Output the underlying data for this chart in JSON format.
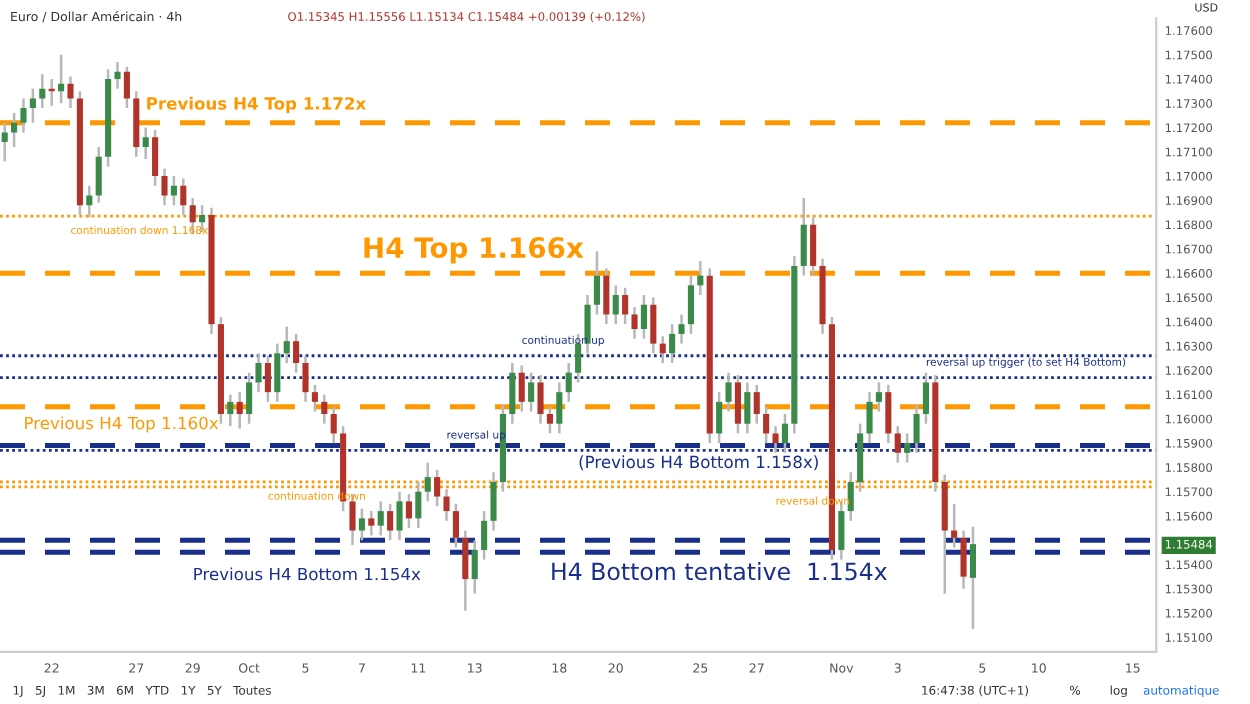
{
  "chart_data": {
    "type": "candlestick",
    "title": "Euro / Dollar Américain · 4h",
    "subtitle": "O1.15345 H1.15556 L1.15134 C1.15484 +0.00139 (+0.12%)",
    "categories": [
      null,
      null,
      null,
      null,
      null,
      "22",
      null,
      null,
      null,
      null,
      null,
      null,
      null,
      null,
      "27",
      null,
      null,
      null,
      null,
      null,
      "29",
      null,
      null,
      null,
      null,
      null,
      "Oct",
      null,
      null,
      null,
      null,
      null,
      "5",
      null,
      null,
      null,
      null,
      null,
      "7",
      null,
      null,
      null,
      null,
      null,
      "11",
      null,
      null,
      null,
      null,
      null,
      "13",
      null,
      null,
      null,
      null,
      null,
      null,
      null,
      null,
      "18",
      null,
      null,
      null,
      null,
      null,
      "20",
      null,
      null,
      null,
      null,
      null,
      null,
      null,
      null,
      "25",
      null,
      null,
      null,
      null,
      null,
      "27",
      null,
      null,
      null,
      null,
      null,
      null,
      null,
      null,
      "Nov",
      null,
      null,
      null,
      null,
      null,
      "3",
      null,
      null,
      null,
      null,
      null,
      null,
      null,
      null,
      "5",
      null,
      null,
      null,
      null,
      null,
      "10",
      null,
      null,
      null,
      null,
      null,
      null,
      null,
      null,
      null,
      "15",
      null,
      null
    ],
    "ohlc": [
      [
        1.1714,
        1.1722,
        1.1706,
        1.1718
      ],
      [
        1.1718,
        1.1726,
        1.1712,
        1.1722
      ],
      [
        1.1722,
        1.1732,
        1.1718,
        1.1728
      ],
      [
        1.1728,
        1.1736,
        1.1722,
        1.1732
      ],
      [
        1.1732,
        1.1742,
        1.1728,
        1.1736
      ],
      [
        1.1736,
        1.174,
        1.1729,
        1.1735
      ],
      [
        1.1735,
        1.175,
        1.173,
        1.1738
      ],
      [
        1.1738,
        1.1741,
        1.1728,
        1.1732
      ],
      [
        1.1732,
        1.1735,
        1.1684,
        1.1688
      ],
      [
        1.1688,
        1.1696,
        1.1683,
        1.1692
      ],
      [
        1.1692,
        1.1712,
        1.1689,
        1.1708
      ],
      [
        1.1708,
        1.1744,
        1.1704,
        1.174
      ],
      [
        1.174,
        1.1747,
        1.1736,
        1.1743
      ],
      [
        1.1743,
        1.1745,
        1.1728,
        1.1732
      ],
      [
        1.1732,
        1.1735,
        1.1708,
        1.1712
      ],
      [
        1.1712,
        1.172,
        1.1707,
        1.1716
      ],
      [
        1.1716,
        1.1719,
        1.1696,
        1.17
      ],
      [
        1.17,
        1.1703,
        1.1688,
        1.1692
      ],
      [
        1.1692,
        1.17,
        1.1688,
        1.1696
      ],
      [
        1.1696,
        1.1699,
        1.1684,
        1.1688
      ],
      [
        1.1688,
        1.1691,
        1.1676,
        1.1681
      ],
      [
        1.1681,
        1.1688,
        1.1677,
        1.1684
      ],
      [
        1.1684,
        1.1687,
        1.1635,
        1.1639
      ],
      [
        1.1639,
        1.1642,
        1.1598,
        1.1602
      ],
      [
        1.1602,
        1.161,
        1.1597,
        1.1607
      ],
      [
        1.1607,
        1.1611,
        1.1596,
        1.1602
      ],
      [
        1.1602,
        1.1619,
        1.1598,
        1.1615
      ],
      [
        1.1615,
        1.1627,
        1.1611,
        1.1623
      ],
      [
        1.1623,
        1.1626,
        1.1607,
        1.1611
      ],
      [
        1.1611,
        1.1631,
        1.1607,
        1.1627
      ],
      [
        1.1627,
        1.1638,
        1.1623,
        1.1632
      ],
      [
        1.1632,
        1.1635,
        1.1619,
        1.1623
      ],
      [
        1.1623,
        1.1626,
        1.1607,
        1.1611
      ],
      [
        1.1611,
        1.1614,
        1.1603,
        1.1607
      ],
      [
        1.1607,
        1.161,
        1.1598,
        1.1602
      ],
      [
        1.1602,
        1.1605,
        1.159,
        1.1594
      ],
      [
        1.1594,
        1.1597,
        1.1562,
        1.1566
      ],
      [
        1.1566,
        1.1569,
        1.1548,
        1.1554
      ],
      [
        1.1554,
        1.1563,
        1.155,
        1.1559
      ],
      [
        1.1559,
        1.1562,
        1.1552,
        1.1556
      ],
      [
        1.1556,
        1.1566,
        1.1552,
        1.1562
      ],
      [
        1.1562,
        1.1565,
        1.155,
        1.1554
      ],
      [
        1.1554,
        1.157,
        1.155,
        1.1566
      ],
      [
        1.1566,
        1.1569,
        1.1555,
        1.1559
      ],
      [
        1.1559,
        1.1574,
        1.1555,
        1.157
      ],
      [
        1.157,
        1.1582,
        1.1566,
        1.1576
      ],
      [
        1.1576,
        1.1579,
        1.1564,
        1.1568
      ],
      [
        1.1568,
        1.1571,
        1.1558,
        1.1562
      ],
      [
        1.1562,
        1.1565,
        1.1547,
        1.1551
      ],
      [
        1.1551,
        1.1554,
        1.1521,
        1.1534
      ],
      [
        1.1534,
        1.155,
        1.1528,
        1.1546
      ],
      [
        1.1546,
        1.1562,
        1.1542,
        1.1558
      ],
      [
        1.1558,
        1.1578,
        1.1554,
        1.1574
      ],
      [
        1.1574,
        1.1606,
        1.157,
        1.1602
      ],
      [
        1.1602,
        1.1623,
        1.1598,
        1.1619
      ],
      [
        1.1619,
        1.1622,
        1.1603,
        1.1607
      ],
      [
        1.1607,
        1.1619,
        1.1603,
        1.1615
      ],
      [
        1.1615,
        1.1618,
        1.1598,
        1.1602
      ],
      [
        1.1602,
        1.1605,
        1.1594,
        1.1598
      ],
      [
        1.1598,
        1.1615,
        1.1594,
        1.1611
      ],
      [
        1.1611,
        1.1623,
        1.1607,
        1.1619
      ],
      [
        1.1619,
        1.1635,
        1.1615,
        1.1631
      ],
      [
        1.1631,
        1.1651,
        1.1627,
        1.1647
      ],
      [
        1.1647,
        1.1669,
        1.1643,
        1.1659
      ],
      [
        1.1659,
        1.1662,
        1.1639,
        1.1643
      ],
      [
        1.1643,
        1.1655,
        1.1639,
        1.1651
      ],
      [
        1.1651,
        1.1654,
        1.1639,
        1.1643
      ],
      [
        1.1643,
        1.1646,
        1.1633,
        1.1637
      ],
      [
        1.1637,
        1.1651,
        1.1633,
        1.1647
      ],
      [
        1.1647,
        1.165,
        1.1627,
        1.1631
      ],
      [
        1.1631,
        1.1634,
        1.1623,
        1.1627
      ],
      [
        1.1627,
        1.1639,
        1.1623,
        1.1635
      ],
      [
        1.1635,
        1.1643,
        1.1631,
        1.1639
      ],
      [
        1.1639,
        1.1659,
        1.1635,
        1.1655
      ],
      [
        1.1655,
        1.1665,
        1.1651,
        1.1659
      ],
      [
        1.1659,
        1.1662,
        1.159,
        1.1594
      ],
      [
        1.1594,
        1.1611,
        1.159,
        1.1607
      ],
      [
        1.1607,
        1.1619,
        1.1603,
        1.1615
      ],
      [
        1.1615,
        1.1618,
        1.1594,
        1.1598
      ],
      [
        1.1598,
        1.1615,
        1.1594,
        1.1611
      ],
      [
        1.1611,
        1.1614,
        1.1598,
        1.1602
      ],
      [
        1.1602,
        1.1605,
        1.159,
        1.1594
      ],
      [
        1.1594,
        1.1597,
        1.1586,
        1.159
      ],
      [
        1.159,
        1.1602,
        1.1586,
        1.1598
      ],
      [
        1.1598,
        1.1667,
        1.1594,
        1.1663
      ],
      [
        1.1663,
        1.1691,
        1.1659,
        1.168
      ],
      [
        1.168,
        1.1683,
        1.1659,
        1.1663
      ],
      [
        1.1663,
        1.1666,
        1.1635,
        1.1639
      ],
      [
        1.1639,
        1.1642,
        1.1542,
        1.1546
      ],
      [
        1.1546,
        1.1566,
        1.1542,
        1.1562
      ],
      [
        1.1562,
        1.1578,
        1.1558,
        1.1574
      ],
      [
        1.1574,
        1.1598,
        1.157,
        1.1594
      ],
      [
        1.1594,
        1.1611,
        1.159,
        1.1607
      ],
      [
        1.1607,
        1.1615,
        1.1603,
        1.1611
      ],
      [
        1.1611,
        1.1614,
        1.159,
        1.1594
      ],
      [
        1.1594,
        1.1597,
        1.1582,
        1.1586
      ],
      [
        1.1586,
        1.1594,
        1.1582,
        1.159
      ],
      [
        1.159,
        1.1606,
        1.1586,
        1.1602
      ],
      [
        1.1602,
        1.1619,
        1.1598,
        1.1615
      ],
      [
        1.1615,
        1.1618,
        1.157,
        1.1574
      ],
      [
        1.1574,
        1.1577,
        1.1528,
        1.1554
      ],
      [
        1.1554,
        1.1565,
        1.1547,
        1.1551
      ],
      [
        1.1551,
        1.1554,
        1.153,
        1.1535
      ],
      [
        1.15345,
        1.15556,
        1.15134,
        1.15484
      ],
      null,
      null,
      null,
      null,
      null,
      null,
      null,
      null,
      null,
      null,
      null,
      null,
      null,
      null,
      null,
      null,
      null,
      null,
      null
    ],
    "ylim": [
      1.1504,
      1.1765
    ],
    "yticks": [
      {
        "value": 1.151,
        "label": "1.15100"
      },
      {
        "value": 1.152,
        "label": "1.15200"
      },
      {
        "value": 1.153,
        "label": "1.15300"
      },
      {
        "value": 1.154,
        "label": "1.15400"
      },
      {
        "value": 1.15484,
        "label": "1.15484"
      },
      {
        "value": 1.156,
        "label": "1.15600"
      },
      {
        "value": 1.157,
        "label": "1.15700"
      },
      {
        "value": 1.158,
        "label": "1.15800"
      },
      {
        "value": 1.159,
        "label": "1.15900"
      },
      {
        "value": 1.16,
        "label": "1.16000"
      },
      {
        "value": 1.161,
        "label": "1.16100"
      },
      {
        "value": 1.162,
        "label": "1.16200"
      },
      {
        "value": 1.163,
        "label": "1.16300"
      },
      {
        "value": 1.164,
        "label": "1.16400"
      },
      {
        "value": 1.165,
        "label": "1.16500"
      },
      {
        "value": 1.166,
        "label": "1.16600"
      },
      {
        "value": 1.167,
        "label": "1.16700"
      },
      {
        "value": 1.168,
        "label": "1.16800"
      },
      {
        "value": 1.169,
        "label": "1.16900"
      },
      {
        "value": 1.17,
        "label": "1.17000"
      },
      {
        "value": 1.171,
        "label": "1.17100"
      },
      {
        "value": 1.172,
        "label": "1.17200"
      },
      {
        "value": 1.173,
        "label": "1.17300"
      },
      {
        "value": 1.174,
        "label": "1.17400"
      },
      {
        "value": 1.175,
        "label": "1.17500"
      },
      {
        "value": 1.176,
        "label": "1.17600"
      }
    ],
    "ref_lines": [
      {
        "axis": "y",
        "value": 1.1722,
        "label": "Previous H4 Top 1.172x",
        "color": "#ff9800",
        "line_style": "dashed"
      },
      {
        "axis": "y",
        "value": 1.16835,
        "label": "continuation down 1.168x",
        "color": "#ff9800",
        "line_style": "dotted"
      },
      {
        "axis": "y",
        "value": 1.166,
        "label": "H4 Top 1.166x",
        "color": "#ff9800",
        "line_style": "dashed"
      },
      {
        "axis": "y",
        "value": 1.1626,
        "label": "continuation up",
        "color": "#1a2f8a",
        "line_style": "dotted"
      },
      {
        "axis": "y",
        "value": 1.1617,
        "label": "reversal up trigger (to set H4 Bottom)",
        "color": "#1a2f8a",
        "line_style": "dotted"
      },
      {
        "axis": "y",
        "value": 1.1605,
        "label": "Previous H4 Top 1.160x",
        "color": "#ff9800",
        "line_style": "dashed"
      },
      {
        "axis": "y",
        "value": 1.1587,
        "label": "reversal up",
        "color": "#1a2f8a",
        "line_style": "dotted"
      },
      {
        "axis": "y",
        "value": 1.1589,
        "label": "(Previous H4 Bottom 1.158x)",
        "color": "#1a2f8a",
        "line_style": "dashed"
      },
      {
        "axis": "y",
        "value": 1.1574,
        "label": "continuation down",
        "color": "#ff9800",
        "line_style": "dotted"
      },
      {
        "axis": "y",
        "value": 1.1572,
        "label": "reversal down",
        "color": "#ff9800",
        "line_style": "dotted"
      },
      {
        "axis": "y",
        "value": 1.155,
        "label": "Previous H4 Bottom 1.154x",
        "color": "#1a2f8a",
        "line_style": "dashed"
      },
      {
        "axis": "y",
        "value": 1.1545,
        "label": "H4 Bottom tentative  1.154x",
        "color": "#1a2f8a",
        "line_style": "dashed"
      }
    ],
    "annotations": [
      "USD",
      "1J   5J   1M   3M   6M   YTD   1Y   5Y   Toutes",
      "16:47:38 (UTC+1)",
      "%",
      "log",
      "automatique"
    ]
  }
}
